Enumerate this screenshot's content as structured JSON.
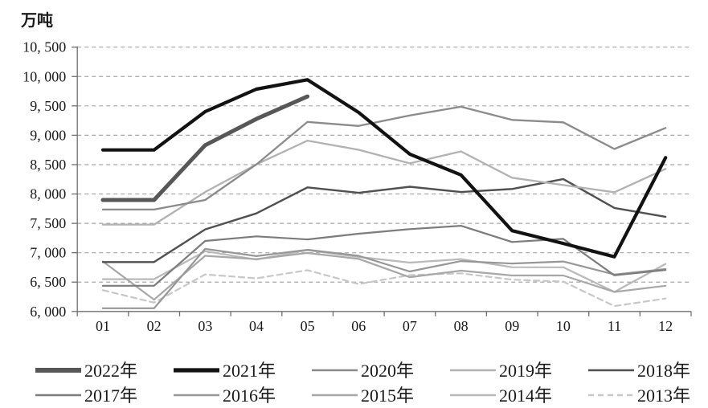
{
  "chart_data": {
    "type": "line",
    "title": "",
    "unit_label": "万吨",
    "xlabel": "",
    "ylabel": "万吨",
    "x_categories": [
      "01",
      "02",
      "03",
      "04",
      "05",
      "06",
      "07",
      "08",
      "09",
      "10",
      "11",
      "12"
    ],
    "y_ticks": [
      {
        "label": "6, 000",
        "value": 6000
      },
      {
        "label": "6, 500",
        "value": 6500
      },
      {
        "label": "7, 000",
        "value": 7000
      },
      {
        "label": "7, 500",
        "value": 7500
      },
      {
        "label": "8, 000",
        "value": 8000
      },
      {
        "label": "8, 500",
        "value": 8500
      },
      {
        "label": "9, 000",
        "value": 9000
      },
      {
        "label": "9, 500",
        "value": 9500
      },
      {
        "label": "10, 000",
        "value": 10000
      },
      {
        "label": "10, 500",
        "value": 10500
      }
    ],
    "ylim": [
      6000,
      10500
    ],
    "grid": "horizontal-dashed",
    "legend_position": "bottom",
    "legend_rows": [
      [
        "2022年",
        "2021年",
        "2020年",
        "2019年",
        "2018年"
      ],
      [
        "2017年",
        "2016年",
        "2015年",
        "2014年",
        "2013年"
      ]
    ],
    "series": [
      {
        "name": "2022年",
        "color": "#575757",
        "width": 5,
        "dash": null,
        "values": [
          7898,
          7898,
          8830,
          9278,
          9661,
          null,
          null,
          null,
          null,
          null,
          null,
          null
        ]
      },
      {
        "name": "2021年",
        "color": "#121212",
        "width": 4.2,
        "dash": null,
        "values": [
          8750,
          8750,
          9402,
          9785,
          9945,
          9388,
          8679,
          8324,
          7375,
          7158,
          6931,
          8619
        ]
      },
      {
        "name": "2020年",
        "color": "#8b8b8b",
        "width": 2.3,
        "dash": null,
        "values": [
          7735,
          7735,
          7898,
          8503,
          9227,
          9158,
          9336,
          9485,
          9261,
          9220,
          8766,
          9125
        ]
      },
      {
        "name": "2019年",
        "color": "#b2b2b2",
        "width": 2.3,
        "dash": null,
        "values": [
          7479,
          7479,
          8033,
          8503,
          8909,
          8753,
          8522,
          8725,
          8277,
          8152,
          8029,
          8427
        ]
      },
      {
        "name": "2018年",
        "color": "#505050",
        "width": 2.4,
        "dash": null,
        "values": [
          6841,
          6841,
          7398,
          7670,
          8113,
          8020,
          8124,
          8033,
          8085,
          8255,
          7762,
          7612
        ]
      },
      {
        "name": "2017年",
        "color": "#7c7c7c",
        "width": 2.2,
        "dash": null,
        "values": [
          6438,
          6438,
          7200,
          7278,
          7226,
          7323,
          7402,
          7459,
          7183,
          7236,
          6615,
          6705
        ]
      },
      {
        "name": "2016年",
        "color": "#979797",
        "width": 2.2,
        "dash": null,
        "values": [
          6055,
          6055,
          7065,
          6942,
          7050,
          6947,
          6681,
          6857,
          6817,
          6851,
          6629,
          6722
        ]
      },
      {
        "name": "2015年",
        "color": "#a7a7a7",
        "width": 2.2,
        "dash": null,
        "values": [
          6852,
          6201,
          6948,
          6891,
          6995,
          6895,
          6584,
          6694,
          6612,
          6612,
          6332,
          6437
        ]
      },
      {
        "name": "2014年",
        "color": "#b9b9b9",
        "width": 2.2,
        "dash": null,
        "values": [
          6550,
          6550,
          7025,
          6884,
          7043,
          6929,
          6832,
          6891,
          6754,
          6752,
          6332,
          6809
        ]
      },
      {
        "name": "2013年",
        "color": "#c7c7c7",
        "width": 2.2,
        "dash": "7 5",
        "values": [
          6362,
          6150,
          6630,
          6565,
          6703,
          6466,
          6620,
          6650,
          6542,
          6508,
          6091,
          6220
        ]
      }
    ],
    "axis_color": "#6e6e6e",
    "gridline_color": "#a6a6a6"
  }
}
